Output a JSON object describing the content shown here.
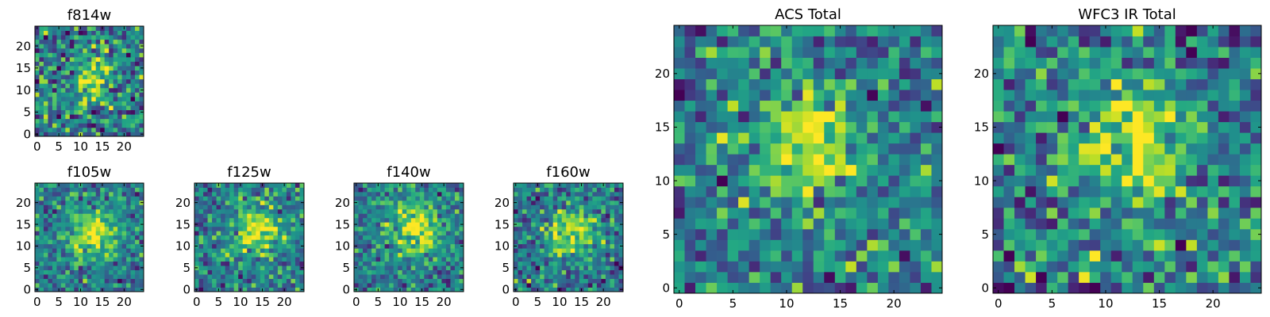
{
  "figure": {
    "description_label": ""
  },
  "chart_data": [
    {
      "id": "p-f814w",
      "type": "heatmap",
      "title": "f814w",
      "grid_size": 25,
      "peak": [
        13,
        13
      ],
      "sigma": 3.2,
      "noise": 0.45,
      "seed": 11,
      "xticks": [
        0,
        5,
        10,
        15,
        20
      ],
      "yticks": [
        0,
        5,
        10,
        15,
        20
      ],
      "xlim": [
        -0.5,
        24.5
      ],
      "ylim": [
        -0.5,
        24.5
      ],
      "colormap": "viridis"
    },
    {
      "id": "p-f105w",
      "type": "heatmap",
      "title": "f105w",
      "grid_size": 25,
      "peak": [
        13,
        13
      ],
      "sigma": 4.0,
      "noise": 0.32,
      "seed": 23,
      "xticks": [
        0,
        5,
        10,
        15,
        20
      ],
      "yticks": [
        0,
        5,
        10,
        15,
        20
      ],
      "xlim": [
        -0.5,
        24.5
      ],
      "ylim": [
        -0.5,
        24.5
      ],
      "colormap": "viridis"
    },
    {
      "id": "p-f125w",
      "type": "heatmap",
      "title": "f125w",
      "grid_size": 25,
      "peak": [
        14,
        14
      ],
      "sigma": 4.0,
      "noise": 0.35,
      "seed": 37,
      "xticks": [
        0,
        5,
        10,
        15,
        20
      ],
      "yticks": [
        0,
        5,
        10,
        15,
        20
      ],
      "xlim": [
        -0.5,
        24.5
      ],
      "ylim": [
        -0.5,
        24.5
      ],
      "colormap": "viridis"
    },
    {
      "id": "p-f140w",
      "type": "heatmap",
      "title": "f140w",
      "grid_size": 25,
      "peak": [
        14,
        14
      ],
      "sigma": 4.2,
      "noise": 0.32,
      "seed": 41,
      "xticks": [
        0,
        5,
        10,
        15,
        20
      ],
      "yticks": [
        0,
        5,
        10,
        15,
        20
      ],
      "xlim": [
        -0.5,
        24.5
      ],
      "ylim": [
        -0.5,
        24.5
      ],
      "colormap": "viridis"
    },
    {
      "id": "p-f160w",
      "type": "heatmap",
      "title": "f160w",
      "grid_size": 25,
      "peak": [
        13,
        13
      ],
      "sigma": 3.8,
      "noise": 0.35,
      "seed": 59,
      "xticks": [
        0,
        5,
        10,
        15,
        20
      ],
      "yticks": [
        0,
        5,
        10,
        15,
        20
      ],
      "xlim": [
        -0.5,
        24.5
      ],
      "ylim": [
        -0.5,
        24.5
      ],
      "colormap": "viridis"
    },
    {
      "id": "p-acs",
      "type": "heatmap",
      "title": "ACS Total",
      "grid_size": 25,
      "peak": [
        12,
        13
      ],
      "sigma": 3.8,
      "noise": 0.38,
      "seed": 73,
      "xticks": [
        0,
        5,
        10,
        15,
        20
      ],
      "yticks": [
        0,
        5,
        10,
        15,
        20
      ],
      "xlim": [
        -0.5,
        24.5
      ],
      "ylim": [
        -0.5,
        24.5
      ],
      "colormap": "viridis"
    },
    {
      "id": "p-wfc3",
      "type": "heatmap",
      "title": "WFC3 IR Total",
      "grid_size": 25,
      "peak": [
        13,
        13
      ],
      "sigma": 3.5,
      "noise": 0.42,
      "seed": 97,
      "xticks": [
        0,
        5,
        10,
        15,
        20
      ],
      "yticks": [
        0,
        5,
        10,
        15,
        20
      ],
      "xlim": [
        -0.5,
        24.5
      ],
      "ylim": [
        -0.5,
        24.5
      ],
      "colormap": "viridis"
    }
  ]
}
